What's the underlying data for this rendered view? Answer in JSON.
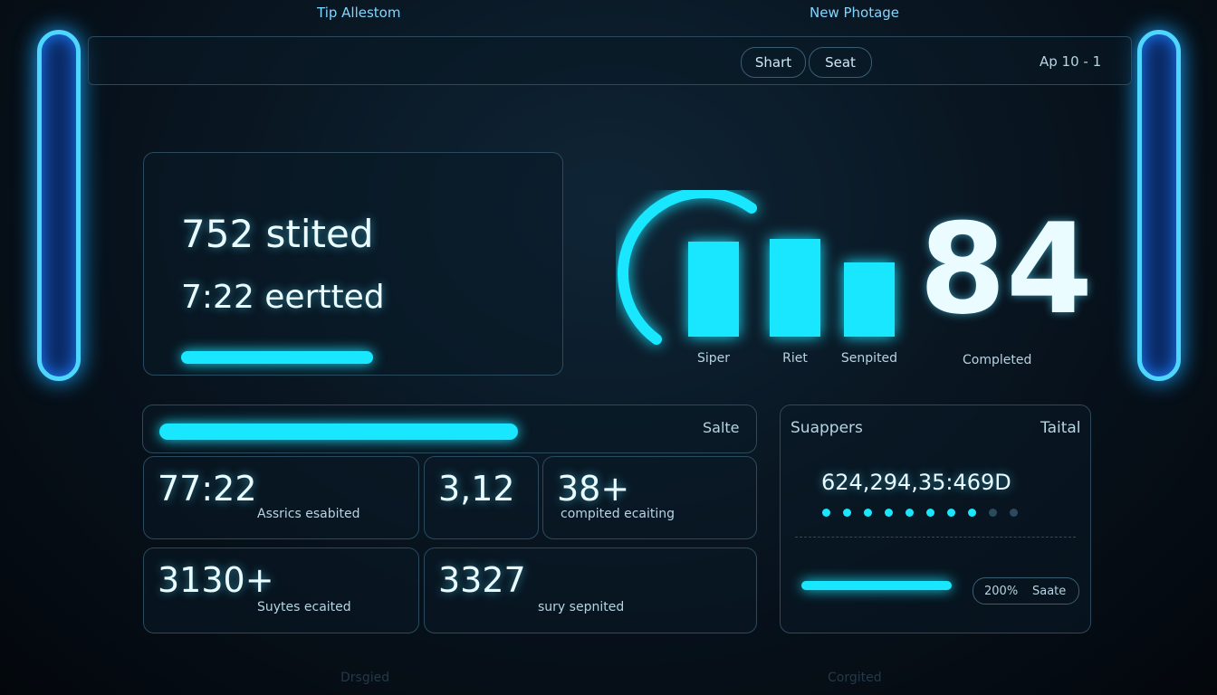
{
  "top": {
    "left": "Tip Allestom",
    "right": "New Photage"
  },
  "header": {
    "buttons": [
      "Shart",
      "Seat"
    ],
    "date": "Ap 10 - 1"
  },
  "summary": {
    "line1": "752 stited",
    "line2": "7:22 eertted"
  },
  "bars": {
    "labels": [
      "Siper",
      "Riet",
      "Senpited"
    ],
    "values": [
      105,
      108,
      82
    ]
  },
  "score": {
    "value": "84",
    "label": "Completed"
  },
  "stats": {
    "title": "Salte",
    "tiles": [
      {
        "value": "77:22",
        "label": "Assrics esabited"
      },
      {
        "value": "3,12",
        "label": ""
      },
      {
        "value": "38+",
        "label": "compited ecaiting"
      },
      {
        "value": "3130+",
        "label": "Suytes ecaited"
      },
      {
        "value": "3327",
        "label": "sury sepnited"
      }
    ]
  },
  "support": {
    "title": "Suappers",
    "total": "Taital",
    "code": "624,294,35:469D",
    "percent": "200%",
    "action": "Saate"
  },
  "footer": {
    "left": "Drsgied",
    "right": "Corgited"
  }
}
